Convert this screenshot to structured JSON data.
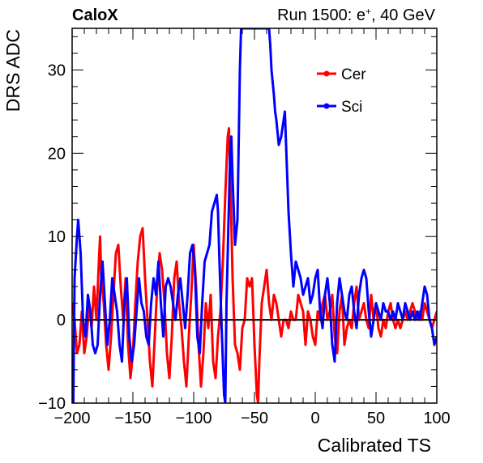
{
  "chart_data": {
    "type": "line",
    "header_left": "CaloX",
    "header_right_prefix": "Run 1500: e",
    "header_right_sup": "+",
    "header_right_suffix": ", 40 GeV",
    "xlabel": "Calibrated TS",
    "ylabel": "DRS ADC",
    "xlim": [
      -200,
      100
    ],
    "ylim": [
      -10,
      35
    ],
    "xticks": [
      -200,
      -150,
      -100,
      -50,
      0,
      50,
      100
    ],
    "xtick_labels": [
      "−200",
      "−150",
      "−100",
      "−50",
      "0",
      "50",
      "100"
    ],
    "yticks": [
      -10,
      0,
      10,
      20,
      30
    ],
    "ytick_labels": [
      "−10",
      "0",
      "10",
      "20",
      "30"
    ],
    "zero_line": 0,
    "grid": false,
    "legend_position": "top-right",
    "series": [
      {
        "name": "Cer",
        "color": "#ff0000",
        "points": [
          [
            -200,
            2
          ],
          [
            -198,
            0
          ],
          [
            -196,
            -4
          ],
          [
            -194,
            -3
          ],
          [
            -192,
            1
          ],
          [
            -190,
            -4
          ],
          [
            -188,
            -2
          ],
          [
            -186,
            2
          ],
          [
            -184,
            -1
          ],
          [
            -182,
            4
          ],
          [
            -180,
            0
          ],
          [
            -178,
            7
          ],
          [
            -177,
            10
          ],
          [
            -176,
            5
          ],
          [
            -174,
            2
          ],
          [
            -172,
            -3
          ],
          [
            -170,
            -6
          ],
          [
            -168,
            -2
          ],
          [
            -166,
            3
          ],
          [
            -164,
            8
          ],
          [
            -162,
            9
          ],
          [
            -160,
            4
          ],
          [
            -158,
            0
          ],
          [
            -156,
            5
          ],
          [
            -154,
            -3
          ],
          [
            -152,
            -7
          ],
          [
            -150,
            -4
          ],
          [
            -148,
            2
          ],
          [
            -146,
            7
          ],
          [
            -144,
            10
          ],
          [
            -142,
            11
          ],
          [
            -140,
            5
          ],
          [
            -138,
            0
          ],
          [
            -136,
            -5
          ],
          [
            -134,
            -8
          ],
          [
            -132,
            -2
          ],
          [
            -130,
            4
          ],
          [
            -128,
            8
          ],
          [
            -126,
            6
          ],
          [
            -124,
            2
          ],
          [
            -122,
            -4
          ],
          [
            -120,
            -7
          ],
          [
            -118,
            -2
          ],
          [
            -116,
            5
          ],
          [
            -114,
            7
          ],
          [
            -112,
            2
          ],
          [
            -110,
            -1
          ],
          [
            -108,
            -5
          ],
          [
            -106,
            -8
          ],
          [
            -104,
            -2
          ],
          [
            -102,
            3
          ],
          [
            -100,
            9
          ],
          [
            -98,
            4
          ],
          [
            -96,
            -3
          ],
          [
            -94,
            -8
          ],
          [
            -92,
            -4
          ],
          [
            -90,
            2
          ],
          [
            -88,
            -1
          ],
          [
            -86,
            3
          ],
          [
            -84,
            -5
          ],
          [
            -82,
            -7
          ],
          [
            -80,
            -2
          ],
          [
            -78,
            1
          ],
          [
            -76,
            7
          ],
          [
            -74,
            15
          ],
          [
            -72,
            22
          ],
          [
            -71,
            23
          ],
          [
            -70,
            18
          ],
          [
            -68,
            5
          ],
          [
            -66,
            -3
          ],
          [
            -64,
            -4
          ],
          [
            -62,
            -6
          ],
          [
            -60,
            -1
          ],
          [
            -58,
            0
          ],
          [
            -56,
            5
          ],
          [
            -54,
            4
          ],
          [
            -52,
            5
          ],
          [
            -50,
            -3
          ],
          [
            -48,
            -9
          ],
          [
            -47,
            -10
          ],
          [
            -46,
            -5
          ],
          [
            -44,
            2
          ],
          [
            -42,
            4
          ],
          [
            -40,
            6
          ],
          [
            -38,
            2
          ],
          [
            -36,
            0
          ],
          [
            -34,
            3
          ],
          [
            -32,
            2
          ],
          [
            -30,
            0
          ],
          [
            -28,
            -2
          ],
          [
            -26,
            0
          ],
          [
            -24,
            0
          ],
          [
            -22,
            -1
          ],
          [
            -20,
            1
          ],
          [
            -18,
            0
          ],
          [
            -16,
            0
          ],
          [
            -14,
            3
          ],
          [
            -12,
            2
          ],
          [
            -10,
            1
          ],
          [
            -8,
            -3
          ],
          [
            -6,
            1
          ],
          [
            -4,
            0
          ],
          [
            -2,
            -2
          ],
          [
            0,
            -3
          ],
          [
            2,
            1
          ],
          [
            4,
            0
          ],
          [
            6,
            2
          ],
          [
            8,
            3
          ],
          [
            10,
            0
          ],
          [
            12,
            1
          ],
          [
            14,
            3
          ],
          [
            16,
            -2
          ],
          [
            18,
            -4
          ],
          [
            20,
            1
          ],
          [
            22,
            3
          ],
          [
            24,
            -3
          ],
          [
            26,
            -1
          ],
          [
            28,
            0
          ],
          [
            30,
            -1
          ],
          [
            32,
            2
          ],
          [
            34,
            4
          ],
          [
            36,
            0
          ],
          [
            38,
            1
          ],
          [
            40,
            2
          ],
          [
            42,
            0
          ],
          [
            44,
            -1
          ],
          [
            46,
            3
          ],
          [
            48,
            0
          ],
          [
            50,
            2
          ],
          [
            52,
            -1
          ],
          [
            54,
            -2
          ],
          [
            56,
            0
          ],
          [
            58,
            -1
          ],
          [
            60,
            1
          ],
          [
            62,
            2
          ],
          [
            64,
            0
          ],
          [
            66,
            -1
          ],
          [
            68,
            0
          ],
          [
            70,
            -1
          ],
          [
            72,
            0
          ],
          [
            74,
            1
          ],
          [
            76,
            0
          ],
          [
            78,
            1
          ],
          [
            80,
            2
          ],
          [
            82,
            1
          ],
          [
            84,
            0
          ],
          [
            86,
            1
          ],
          [
            88,
            0
          ],
          [
            90,
            2
          ],
          [
            92,
            1
          ],
          [
            94,
            0
          ],
          [
            96,
            -1
          ],
          [
            98,
            0
          ],
          [
            100,
            1
          ]
        ]
      },
      {
        "name": "Sci",
        "color": "#0000ff",
        "points": [
          [
            -200,
            -9
          ],
          [
            -199,
            -10
          ],
          [
            -198,
            5
          ],
          [
            -196,
            10
          ],
          [
            -195,
            12
          ],
          [
            -193,
            8
          ],
          [
            -191,
            0
          ],
          [
            -189,
            -2
          ],
          [
            -187,
            3
          ],
          [
            -185,
            1
          ],
          [
            -183,
            -3
          ],
          [
            -181,
            -4
          ],
          [
            -179,
            -3
          ],
          [
            -177,
            3
          ],
          [
            -175,
            7
          ],
          [
            -173,
            2
          ],
          [
            -171,
            -3
          ],
          [
            -169,
            0
          ],
          [
            -167,
            5
          ],
          [
            -165,
            3
          ],
          [
            -163,
            1
          ],
          [
            -161,
            -3
          ],
          [
            -159,
            -5
          ],
          [
            -157,
            2
          ],
          [
            -155,
            5
          ],
          [
            -153,
            -2
          ],
          [
            -151,
            -5
          ],
          [
            -149,
            -3
          ],
          [
            -147,
            1
          ],
          [
            -145,
            5
          ],
          [
            -143,
            2
          ],
          [
            -141,
            1
          ],
          [
            -139,
            -2
          ],
          [
            -137,
            -3
          ],
          [
            -135,
            2
          ],
          [
            -133,
            5
          ],
          [
            -131,
            3
          ],
          [
            -129,
            7
          ],
          [
            -127,
            2
          ],
          [
            -125,
            -2
          ],
          [
            -123,
            4
          ],
          [
            -121,
            5
          ],
          [
            -119,
            4
          ],
          [
            -117,
            2
          ],
          [
            -115,
            0
          ],
          [
            -113,
            3
          ],
          [
            -111,
            5
          ],
          [
            -109,
            2
          ],
          [
            -107,
            -1
          ],
          [
            -105,
            3
          ],
          [
            -103,
            8
          ],
          [
            -101,
            9
          ],
          [
            -99,
            6
          ],
          [
            -97,
            -2
          ],
          [
            -95,
            -4
          ],
          [
            -93,
            2
          ],
          [
            -91,
            7
          ],
          [
            -89,
            8
          ],
          [
            -87,
            9
          ],
          [
            -85,
            13
          ],
          [
            -83,
            14
          ],
          [
            -81,
            15
          ],
          [
            -80,
            13
          ],
          [
            -79,
            8
          ],
          [
            -77,
            -1
          ],
          [
            -75,
            -9
          ],
          [
            -74,
            -10
          ],
          [
            -73,
            2
          ],
          [
            -71,
            14
          ],
          [
            -70,
            20
          ],
          [
            -69,
            22
          ],
          [
            -68,
            17
          ],
          [
            -66,
            9
          ],
          [
            -64,
            12
          ],
          [
            -62,
            30
          ],
          [
            -61,
            35
          ],
          [
            -60,
            35
          ],
          [
            -50,
            35
          ],
          [
            -48,
            35
          ],
          [
            -45,
            35
          ],
          [
            -40,
            35
          ],
          [
            -38,
            35
          ],
          [
            -37,
            33
          ],
          [
            -36,
            30
          ],
          [
            -34,
            27
          ],
          [
            -33,
            25
          ],
          [
            -32,
            24
          ],
          [
            -30,
            21
          ],
          [
            -28,
            22
          ],
          [
            -26,
            24
          ],
          [
            -25,
            25
          ],
          [
            -24,
            21
          ],
          [
            -22,
            13
          ],
          [
            -20,
            8
          ],
          [
            -18,
            4
          ],
          [
            -16,
            7
          ],
          [
            -14,
            6
          ],
          [
            -12,
            5
          ],
          [
            -10,
            3
          ],
          [
            -8,
            4
          ],
          [
            -6,
            5
          ],
          [
            -4,
            2
          ],
          [
            -2,
            3
          ],
          [
            0,
            5
          ],
          [
            2,
            6
          ],
          [
            4,
            1
          ],
          [
            6,
            -1
          ],
          [
            8,
            3
          ],
          [
            10,
            5
          ],
          [
            12,
            2
          ],
          [
            14,
            -3
          ],
          [
            16,
            -5
          ],
          [
            18,
            2
          ],
          [
            20,
            5
          ],
          [
            22,
            3
          ],
          [
            24,
            1
          ],
          [
            26,
            0
          ],
          [
            28,
            3
          ],
          [
            30,
            4
          ],
          [
            32,
            1
          ],
          [
            34,
            -1
          ],
          [
            36,
            3
          ],
          [
            38,
            5
          ],
          [
            40,
            6
          ],
          [
            42,
            5
          ],
          [
            44,
            1
          ],
          [
            46,
            -2
          ],
          [
            48,
            0
          ],
          [
            50,
            2
          ],
          [
            52,
            1
          ],
          [
            54,
            0
          ],
          [
            56,
            2
          ],
          [
            58,
            1
          ],
          [
            60,
            1
          ],
          [
            62,
            0
          ],
          [
            64,
            1
          ],
          [
            66,
            0
          ],
          [
            68,
            2
          ],
          [
            70,
            1
          ],
          [
            72,
            0
          ],
          [
            74,
            2
          ],
          [
            76,
            1
          ],
          [
            78,
            0
          ],
          [
            80,
            1
          ],
          [
            82,
            0
          ],
          [
            84,
            1
          ],
          [
            86,
            0
          ],
          [
            88,
            2
          ],
          [
            90,
            4
          ],
          [
            92,
            3
          ],
          [
            94,
            0
          ],
          [
            96,
            -1
          ],
          [
            98,
            -3
          ],
          [
            100,
            -2
          ]
        ]
      }
    ]
  }
}
